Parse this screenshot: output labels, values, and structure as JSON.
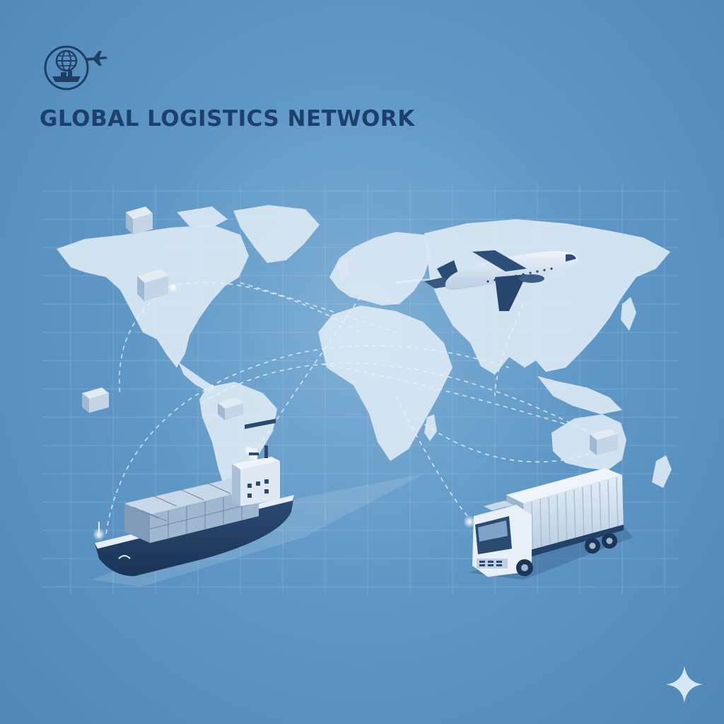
{
  "header": {
    "title": "GLOBAL LOGISTICS NETWORK",
    "logo_icon": "globe-ship-plane-logo-icon"
  },
  "colors": {
    "background": "#5f98c6",
    "land": "#dbe8f3",
    "title": "#1c3f6b",
    "accent": "#1f3e63",
    "route": "#e8f1f9"
  },
  "illustration": {
    "icons": [
      "world-map-icon",
      "airplane-icon",
      "cargo-ship-icon",
      "container-truck-icon",
      "shipping-container-icon",
      "sparkle-icon"
    ]
  }
}
